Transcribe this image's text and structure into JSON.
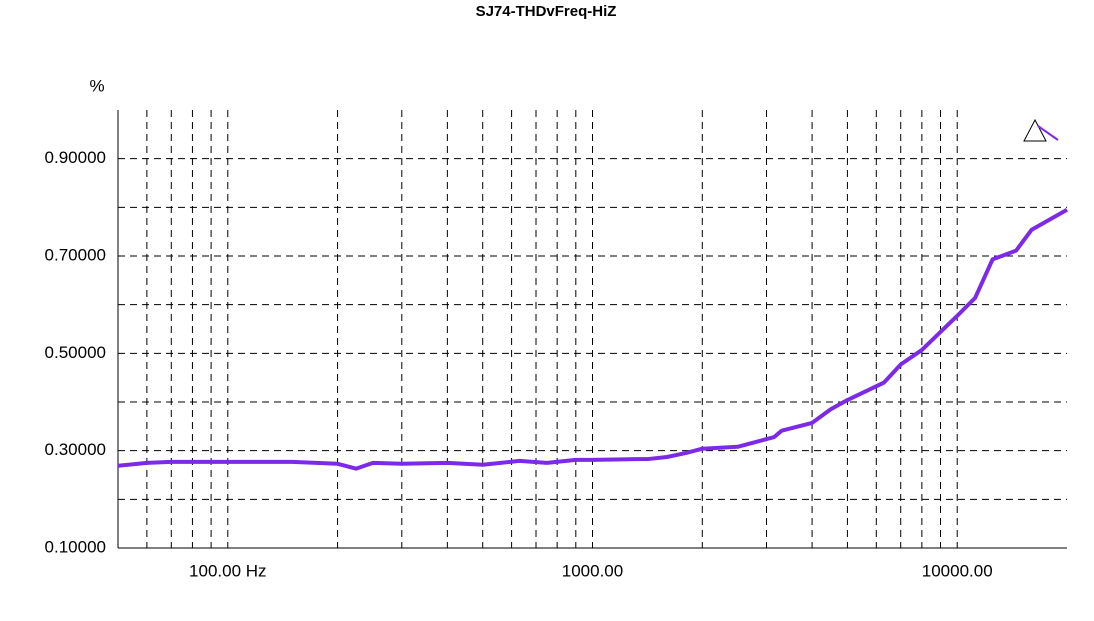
{
  "chart_data": {
    "type": "line",
    "title": "SJ74-THDvFreq-HiZ",
    "y_label": "%",
    "log_x": true,
    "grid": true,
    "xlim": [
      50,
      20000
    ],
    "ylim": [
      0.1,
      1.0
    ],
    "xticks": [
      {
        "value": 100,
        "label": "100.00 Hz"
      },
      {
        "value": 1000,
        "label": "1000.00"
      },
      {
        "value": 10000,
        "label": "10000.00"
      }
    ],
    "xminor": [
      60,
      70,
      80,
      90,
      200,
      300,
      400,
      500,
      600,
      700,
      800,
      900,
      2000,
      3000,
      4000,
      5000,
      6000,
      7000,
      8000,
      9000
    ],
    "yticks": [
      {
        "value": 0.1,
        "label": "0.10000"
      },
      {
        "value": 0.3,
        "label": "0.30000"
      },
      {
        "value": 0.5,
        "label": "0.50000"
      },
      {
        "value": 0.7,
        "label": "0.70000"
      },
      {
        "value": 0.9,
        "label": "0.90000"
      }
    ],
    "yminor": [
      0.2,
      0.4,
      0.6,
      0.8
    ],
    "series": [
      {
        "color": "#7c2ae8",
        "x": [
          50,
          60,
          70,
          100,
          150,
          200,
          225,
          250,
          300,
          400,
          500,
          630,
          750,
          900,
          1000,
          1430,
          1600,
          1800,
          2000,
          2500,
          3150,
          3300,
          4000,
          4500,
          5000,
          6300,
          7000,
          8000,
          10000,
          11200,
          12500,
          14500,
          16000,
          20000
        ],
        "values": [
          0.269,
          0.275,
          0.277,
          0.277,
          0.277,
          0.273,
          0.263,
          0.275,
          0.273,
          0.275,
          0.271,
          0.279,
          0.275,
          0.281,
          0.281,
          0.283,
          0.287,
          0.295,
          0.304,
          0.308,
          0.328,
          0.341,
          0.357,
          0.385,
          0.404,
          0.44,
          0.477,
          0.507,
          0.577,
          0.614,
          0.693,
          0.711,
          0.754,
          0.795
        ]
      }
    ]
  }
}
